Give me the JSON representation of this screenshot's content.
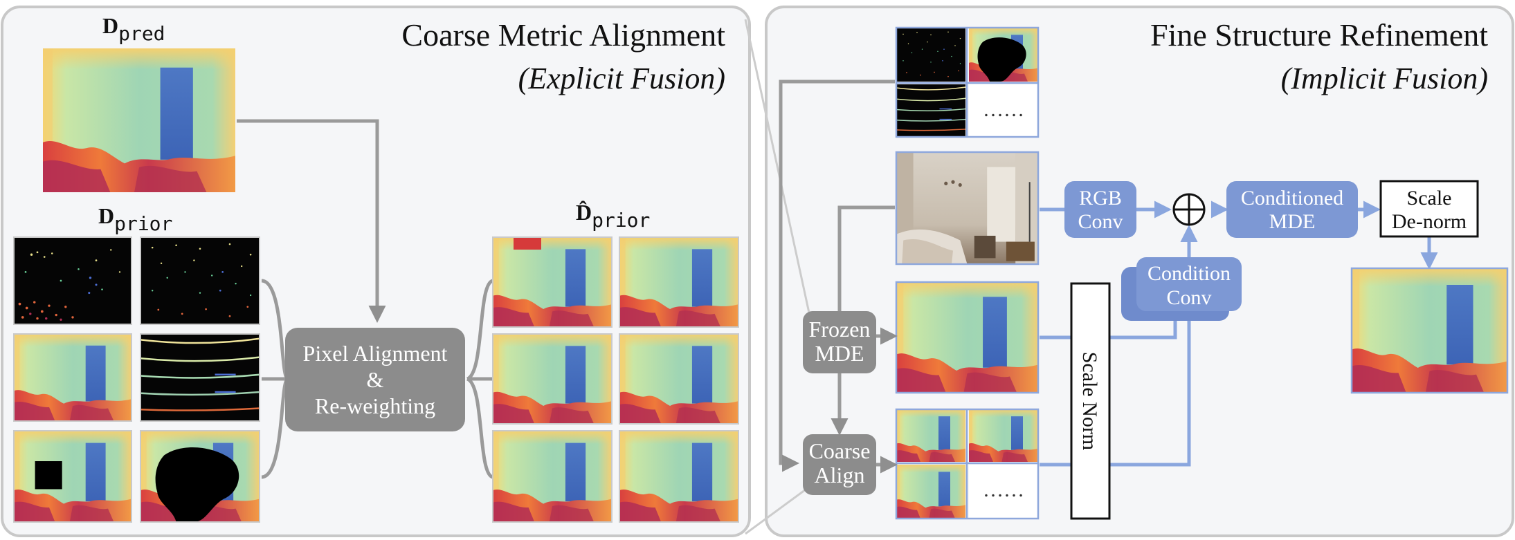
{
  "panels": {
    "left": {
      "title": "Coarse Metric Alignment",
      "subtitle": "(Explicit Fusion)",
      "d_pred": {
        "main": "D",
        "sub": "pred"
      },
      "d_prior": {
        "main": "D",
        "sub": "prior"
      },
      "d_prior_hat": {
        "main": "D̂",
        "sub": "prior"
      },
      "center_block": [
        "Pixel Alignment",
        "&",
        "Re-weighting"
      ]
    },
    "right": {
      "title": "Fine Structure Refinement",
      "subtitle": "(Implicit Fusion)",
      "frozen_mde": [
        "Frozen",
        "MDE"
      ],
      "coarse_align": [
        "Coarse",
        "Align"
      ],
      "rgb_conv": [
        "RGB",
        "Conv"
      ],
      "condition_conv": [
        "Condition",
        "Conv"
      ],
      "conditioned_mde": [
        "Conditioned",
        "MDE"
      ],
      "scale_denorm": [
        "Scale",
        "De-norm"
      ],
      "scale_norm": "Scale Norm",
      "ellipsis": "……",
      "plus_symbol": "⊕"
    }
  },
  "colors": {
    "panel_bg": "#f5f6f8",
    "panel_border": "#c8c8c8",
    "gray_block": "#8c8c8c",
    "gray_arrow": "#8f8f8f",
    "blue_block": "#7d98d4",
    "blue_arrow": "#8aa6de",
    "thumb_border": "#8ea7dc"
  }
}
